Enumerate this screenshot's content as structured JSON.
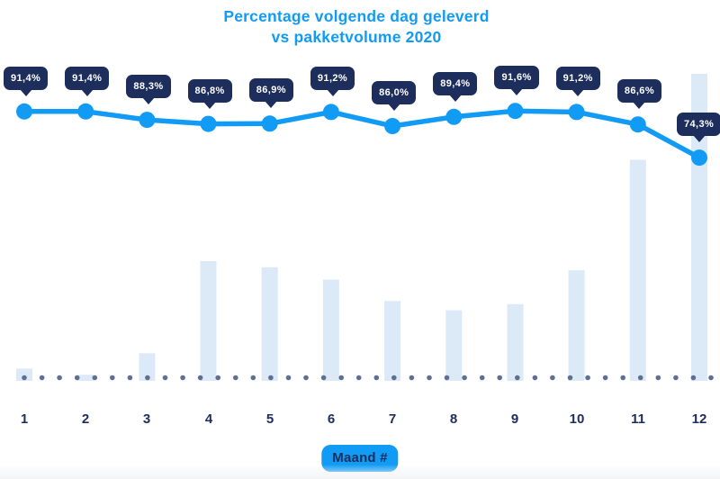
{
  "title": {
    "line1": "Percentage volgende dag geleverd",
    "line2": "vs pakketvolume 2020"
  },
  "x_axis_label": "Maand #",
  "colors": {
    "accent_blue": "#119BF4",
    "navy": "#1D2D5C",
    "bar_fill": "#DCEAF8",
    "baseline_dot": "#5D7094",
    "tooltip_text": "#FFFFFF",
    "background": "#FFFFFF",
    "bottom_strip": "#F2F4F6"
  },
  "chart_data": {
    "type": "combo",
    "title": "Percentage volgende dag geleverd vs pakketvolume 2020",
    "xlabel": "Maand #",
    "categories": [
      "1",
      "2",
      "3",
      "4",
      "5",
      "6",
      "7",
      "8",
      "9",
      "10",
      "11",
      "12"
    ],
    "series": [
      {
        "name": "Percentage volgende dag geleverd",
        "type": "line",
        "unit": "%",
        "values": [
          91.4,
          91.4,
          88.3,
          86.8,
          86.9,
          91.2,
          86.0,
          89.4,
          91.6,
          91.2,
          86.6,
          74.3
        ],
        "labels": [
          "91,4%",
          "91,4%",
          "88,3%",
          "86,8%",
          "86,9%",
          "91,2%",
          "86,0%",
          "89,4%",
          "91,6%",
          "91,2%",
          "86,6%",
          "74,3%"
        ]
      },
      {
        "name": "Pakketvolume 2020",
        "type": "bar",
        "unit": "relative index, max = 100 (bars unlabeled in chart)",
        "values": [
          4,
          2,
          9,
          39,
          37,
          33,
          26,
          23,
          25,
          36,
          72,
          100
        ]
      }
    ],
    "y_axis_visible": false,
    "grid": false,
    "legend": false,
    "baseline": {
      "style": "dotted",
      "dot_count": 40
    }
  }
}
